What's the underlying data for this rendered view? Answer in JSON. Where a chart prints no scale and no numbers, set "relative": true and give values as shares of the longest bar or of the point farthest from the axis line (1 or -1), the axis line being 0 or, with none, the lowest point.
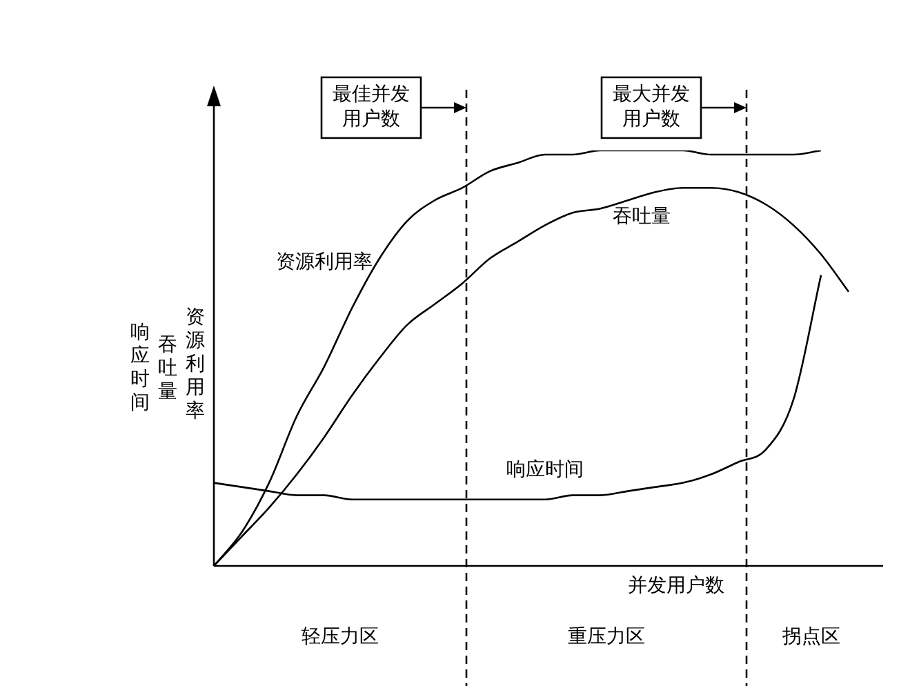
{
  "chart_data": {
    "type": "line",
    "relative": true,
    "xlabel": "并发用户数",
    "ylabel": "响应时间",
    "categories": [
      null,
      null,
      null,
      null,
      null,
      null,
      null,
      null,
      null,
      null,
      null,
      null,
      null,
      null,
      null,
      null,
      null,
      null,
      null,
      null,
      null,
      null,
      null,
      null,
      null
    ],
    "series": [
      {
        "name": "资源利用率",
        "color": "#000000",
        "values": [
          0,
          0.08,
          0.2,
          0.36,
          0.48,
          0.62,
          0.74,
          0.83,
          0.88,
          0.91,
          0.95,
          0.97,
          0.99,
          0.99,
          1,
          1,
          1,
          1,
          0.99,
          0.99,
          0.99,
          0.99,
          1,
          null,
          null
        ]
      },
      {
        "name": "吞吐量",
        "color": "#000000",
        "values": [
          0,
          0.07,
          0.14,
          0.22,
          0.31,
          0.41,
          0.5,
          0.58,
          0.63,
          0.68,
          0.74,
          0.78,
          0.82,
          0.85,
          0.86,
          0.88,
          0.9,
          0.91,
          0.91,
          0.9,
          0.87,
          0.82,
          0.75,
          0.66,
          null
        ]
      },
      {
        "name": "响应时间",
        "color": "#000000",
        "values": [
          0.2,
          0.19,
          0.18,
          0.17,
          0.17,
          0.16,
          0.16,
          0.16,
          0.16,
          0.16,
          0.16,
          0.16,
          0.16,
          0.17,
          0.17,
          0.18,
          0.19,
          0.2,
          0.22,
          0.25,
          0.28,
          0.4,
          0.7,
          null,
          null
        ]
      }
    ],
    "annotations": [
      "最佳并发用户数",
      "最大并发用户数",
      "轻压力区",
      "重压力区",
      "拐点区",
      "吞吐量",
      "资源利用率"
    ],
    "legend": false,
    "marker": "none",
    "line_style": "solid"
  }
}
